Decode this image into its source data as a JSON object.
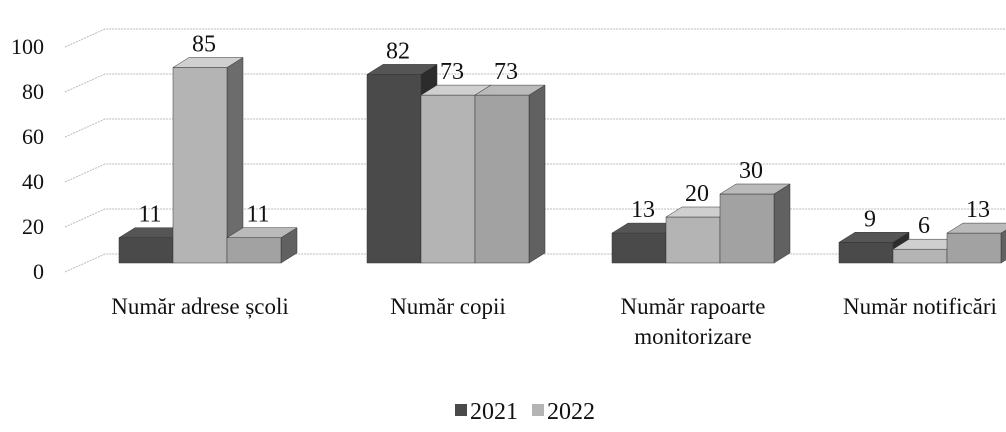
{
  "chart_data": {
    "type": "bar3d",
    "categories": [
      "Număr adrese școli",
      "Număr copii",
      "Număr rapoarte monitorizare",
      "Număr notificări"
    ],
    "series": [
      {
        "name": "2021",
        "color": "#4a4a4a",
        "values": [
          11,
          82,
          13,
          9
        ]
      },
      {
        "name": "2022",
        "color": "#b4b4b4",
        "values": [
          85,
          73,
          20,
          6
        ]
      },
      {
        "color": "#a2a2a2",
        "values": [
          11,
          73,
          30,
          13
        ]
      }
    ],
    "ylim": [
      0,
      100
    ],
    "yticks": [
      0,
      20,
      40,
      60,
      80,
      100
    ],
    "grid": true,
    "legend": "bottom"
  }
}
